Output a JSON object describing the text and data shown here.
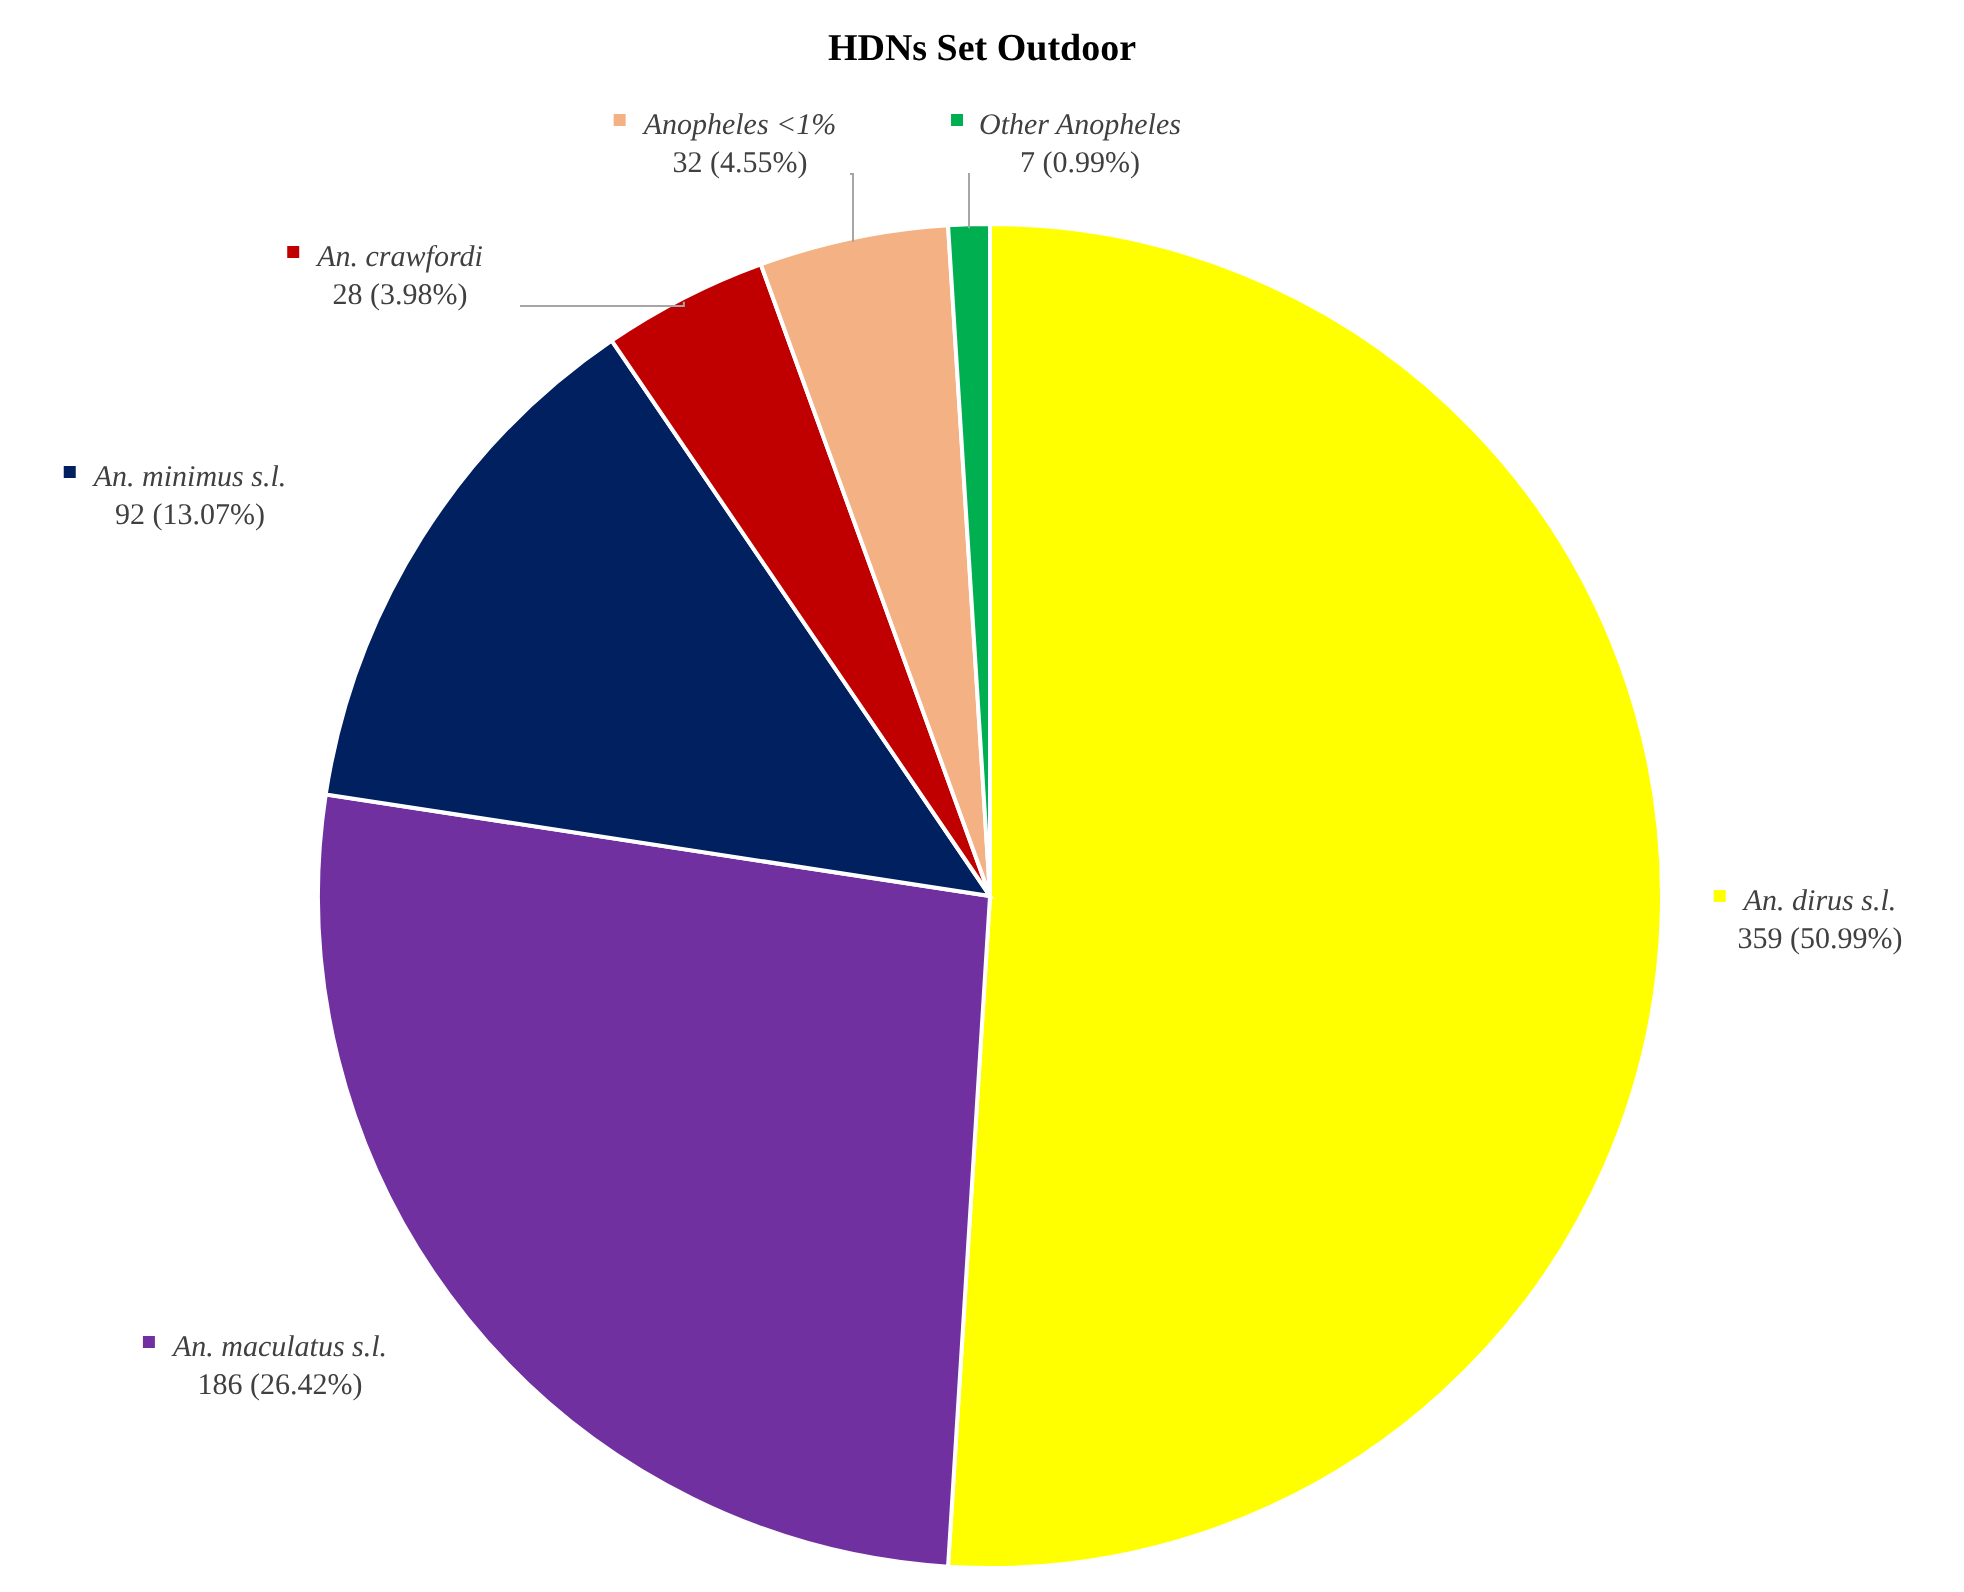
{
  "chart_data": {
    "type": "pie",
    "title": "HDNs Set Outdoor",
    "categories": [
      "An. dirus s.l.",
      "An. maculatus s.l.",
      "An. minimus s.l.",
      "An. crawfordi",
      "Anopheles <1%",
      "Other Anopheles"
    ],
    "values": [
      359,
      186,
      92,
      28,
      32,
      7
    ],
    "colors": [
      "#ffff00",
      "#7030a0",
      "#002060",
      "#c00000",
      "#f4b183",
      "#00b050"
    ],
    "value_labels": [
      "359 (50.99%)",
      "186 (26.42%)",
      "92 (13.07%)",
      "28 (3.98%)",
      "32 (4.55%)",
      "7 (0.99%)"
    ],
    "legend": "top"
  }
}
